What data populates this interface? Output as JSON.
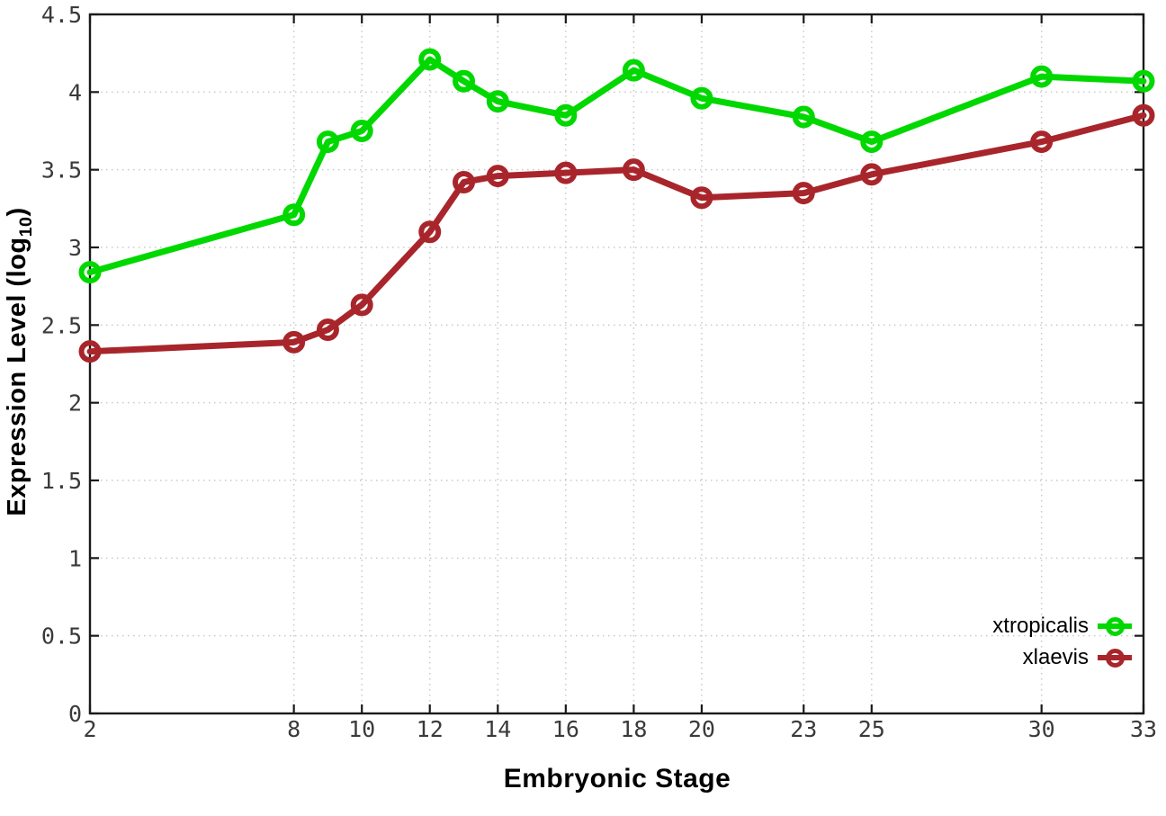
{
  "chart_data": {
    "type": "line",
    "title": "",
    "xlabel": "Embryonic Stage",
    "ylabel": "Expression Level (log10)",
    "ylabel_parts": {
      "prefix": "Expression Level (log",
      "sub": "10",
      "suffix": ")"
    },
    "xlim": [
      2,
      33
    ],
    "ylim": [
      0,
      4.5
    ],
    "x_ticks": [
      2,
      8,
      10,
      12,
      14,
      16,
      18,
      20,
      23,
      25,
      30,
      33
    ],
    "y_ticks": [
      0,
      0.5,
      1,
      1.5,
      2,
      2.5,
      3,
      3.5,
      4,
      4.5
    ],
    "grid": true,
    "grid_color": "#c9c9c9",
    "axis_color": "#1a1a1a",
    "marker": "open-circle",
    "legend_position": "bottom-right-inside",
    "x": [
      2,
      8,
      9,
      10,
      12,
      13,
      14,
      16,
      18,
      20,
      23,
      25,
      30,
      33
    ],
    "series": [
      {
        "name": "xtropicalis",
        "color": "#00d800",
        "values": [
          2.84,
          3.21,
          3.68,
          3.75,
          4.21,
          4.07,
          3.94,
          3.85,
          4.14,
          3.96,
          3.84,
          3.68,
          4.1,
          4.07
        ]
      },
      {
        "name": "xlaevis",
        "color": "#a8262b",
        "values": [
          2.33,
          2.39,
          2.47,
          2.63,
          3.1,
          3.42,
          3.46,
          3.48,
          3.5,
          3.32,
          3.35,
          3.47,
          3.68,
          3.85
        ]
      }
    ]
  }
}
